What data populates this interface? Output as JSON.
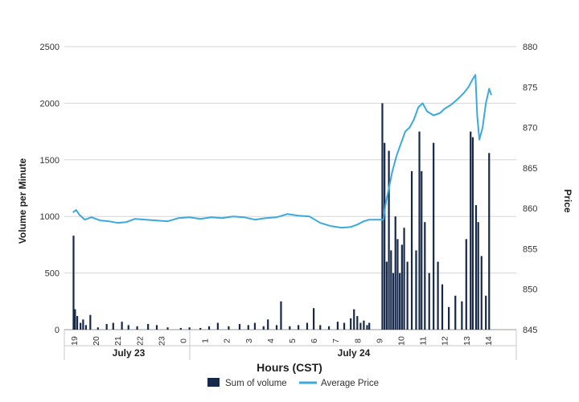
{
  "chart_data": {
    "type": "bar+line",
    "xlabel": "Hours (CST)",
    "ylabel_left": "Volume per Minute",
    "ylabel_right": "Price",
    "ylim_left": [
      0,
      2500
    ],
    "ylim_right": [
      845,
      880
    ],
    "yticks_left": [
      "0",
      "500",
      "1000",
      "1500",
      "2000",
      "2500"
    ],
    "yticks_right": [
      "845",
      "850",
      "855",
      "860",
      "865",
      "870",
      "875",
      "880"
    ],
    "hour_ticks": [
      "19",
      "20",
      "21",
      "22",
      "23",
      "0",
      "1",
      "2",
      "3",
      "4",
      "5",
      "6",
      "7",
      "8",
      "9",
      "10",
      "11",
      "12",
      "13",
      "14"
    ],
    "date_groups": [
      "July 23",
      "July 24"
    ],
    "grid": "horizontal",
    "legend_position": "bottom",
    "series": [
      {
        "name": "Sum of volume",
        "type": "bar",
        "color": "#16294a",
        "hour_x": [
          18.98,
          19.05,
          19.15,
          19.3,
          19.42,
          19.55,
          19.75,
          20.1,
          20.5,
          20.8,
          21.2,
          21.5,
          21.9,
          22.4,
          22.8,
          23.3,
          23.9,
          0.3,
          0.8,
          1.2,
          1.6,
          2.1,
          2.6,
          3.0,
          3.3,
          3.7,
          3.9,
          4.3,
          4.5,
          4.9,
          5.3,
          5.7,
          6.0,
          6.3,
          6.7,
          7.1,
          7.4,
          7.7,
          7.85,
          8.0,
          8.15,
          8.3,
          8.45,
          8.55,
          9.15,
          9.25,
          9.35,
          9.45,
          9.55,
          9.65,
          9.75,
          9.85,
          9.95,
          10.05,
          10.15,
          10.3,
          10.5,
          10.7,
          10.85,
          10.95,
          11.1,
          11.3,
          11.5,
          11.7,
          11.9,
          12.2,
          12.5,
          12.8,
          13.0,
          13.2,
          13.3,
          13.45,
          13.55,
          13.7,
          13.9,
          14.05
        ],
        "values": [
          830,
          180,
          120,
          60,
          90,
          40,
          130,
          20,
          50,
          60,
          70,
          40,
          30,
          50,
          40,
          20,
          15,
          20,
          15,
          30,
          60,
          30,
          50,
          40,
          60,
          30,
          90,
          40,
          250,
          30,
          40,
          60,
          190,
          40,
          30,
          70,
          60,
          100,
          180,
          120,
          60,
          80,
          40,
          60,
          2000,
          1650,
          600,
          1580,
          700,
          500,
          1000,
          800,
          500,
          750,
          900,
          600,
          1400,
          700,
          1750,
          1400,
          950,
          500,
          1650,
          600,
          400,
          200,
          300,
          250,
          800,
          1750,
          1700,
          1100,
          950,
          650,
          300,
          1560
        ]
      },
      {
        "name": "Average Price",
        "type": "line",
        "color": "#3ba9dc",
        "hour_x": [
          18.95,
          19.1,
          19.25,
          19.5,
          19.8,
          20.2,
          20.6,
          21.0,
          21.4,
          21.8,
          22.3,
          22.8,
          23.3,
          23.8,
          0.3,
          0.8,
          1.3,
          1.8,
          2.3,
          2.8,
          3.3,
          3.8,
          4.3,
          4.8,
          5.3,
          5.8,
          6.3,
          6.8,
          7.3,
          7.7,
          8.0,
          8.3,
          8.55,
          8.9,
          9.2,
          9.3,
          9.45,
          9.6,
          9.8,
          10.0,
          10.2,
          10.4,
          10.6,
          10.8,
          11.0,
          11.2,
          11.5,
          11.8,
          12.0,
          12.3,
          12.6,
          12.9,
          13.1,
          13.3,
          13.42,
          13.5,
          13.6,
          13.75,
          13.9,
          14.05,
          14.15
        ],
        "values": [
          859.5,
          859.8,
          859.2,
          858.6,
          858.9,
          858.5,
          858.4,
          858.2,
          858.3,
          858.7,
          858.6,
          858.5,
          858.4,
          858.8,
          858.9,
          858.7,
          858.9,
          858.8,
          859.0,
          858.9,
          858.6,
          858.8,
          858.9,
          859.3,
          859.1,
          859.0,
          858.2,
          857.8,
          857.6,
          857.7,
          858.0,
          858.4,
          858.6,
          858.6,
          858.6,
          860.5,
          862.5,
          864.5,
          866.5,
          868.0,
          869.5,
          870.0,
          871.0,
          872.5,
          873.0,
          872.0,
          871.5,
          871.8,
          872.3,
          872.8,
          873.5,
          874.3,
          875.0,
          876.0,
          876.5,
          871.5,
          868.5,
          870.0,
          873.0,
          874.8,
          874.0
        ]
      }
    ]
  }
}
